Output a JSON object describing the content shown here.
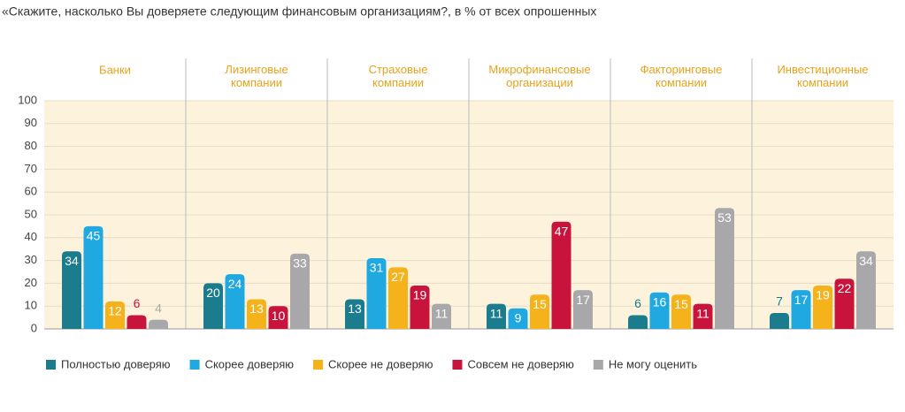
{
  "chart_data": {
    "type": "bar",
    "title": "«Скажите, насколько Вы доверяете следующим финансовым организациям?, в % от всех опрошенных",
    "categories": [
      "Банки",
      "Лизинговые компании",
      "Страховые компании",
      "Микрофинансовые организации",
      "Факторинговые компании",
      "Инвестиционные компании"
    ],
    "series": [
      {
        "name": "Полностью доверяю",
        "color": "#1b7c8d",
        "values": [
          34,
          20,
          13,
          11,
          6,
          7
        ]
      },
      {
        "name": "Скорее доверяю",
        "color": "#1fa9e0",
        "values": [
          45,
          24,
          31,
          9,
          16,
          17
        ]
      },
      {
        "name": "Скорее не доверяю",
        "color": "#f5b21a",
        "values": [
          12,
          13,
          27,
          15,
          15,
          19
        ]
      },
      {
        "name": "Совсем не доверяю",
        "color": "#c8143d",
        "values": [
          6,
          10,
          19,
          47,
          11,
          22
        ]
      },
      {
        "name": "Не могу оценить",
        "color": "#a8a8aa",
        "values": [
          4,
          33,
          11,
          17,
          53,
          34
        ]
      }
    ],
    "ylim": [
      0,
      100
    ],
    "yticks": [
      0,
      10,
      20,
      30,
      40,
      50,
      60,
      70,
      80,
      90,
      100
    ],
    "grid": true
  }
}
